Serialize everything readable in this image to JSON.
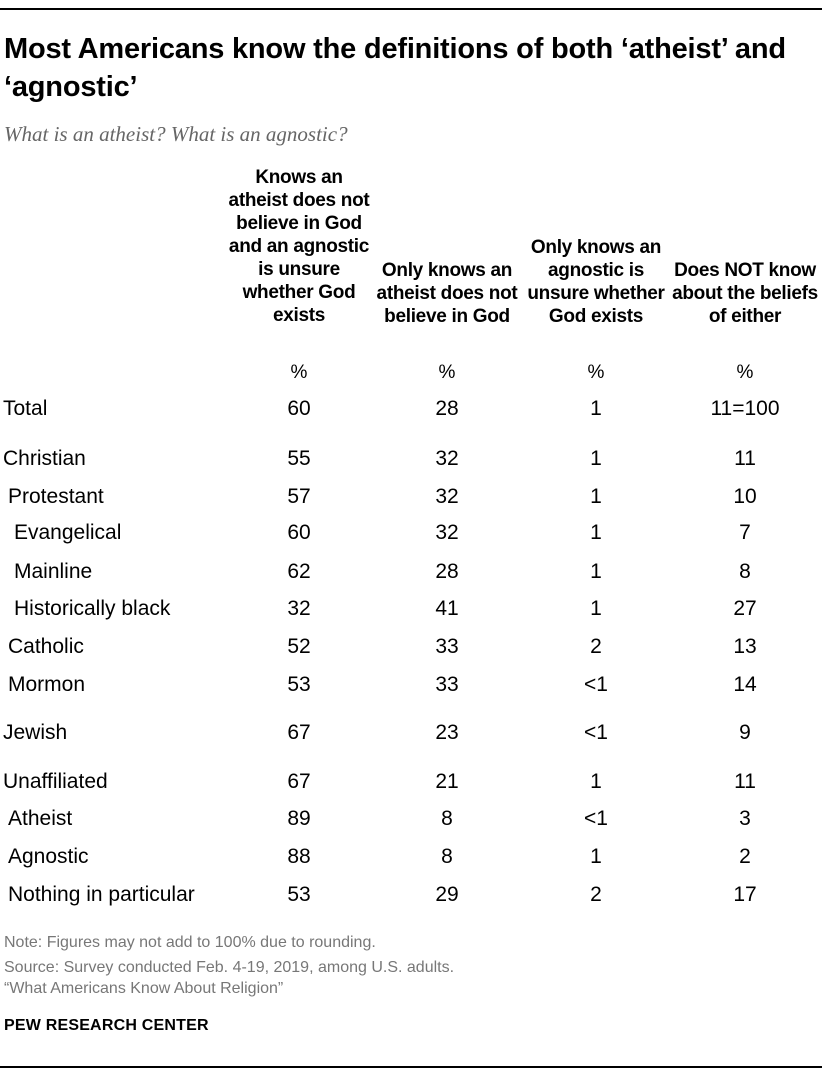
{
  "title": "Most Americans know the definitions of both ‘atheist’ and ‘agnostic’",
  "subtitle": "What is an atheist? What is an agnostic?",
  "columns": [
    "Knows an atheist does not believe in God and an agnostic is unsure whether God exists",
    "Only knows an atheist does not believe in God",
    "Only knows an agnostic is unsure whether God exists",
    "Does NOT know about the beliefs of either"
  ],
  "unit_row": [
    "%",
    "%",
    "%",
    "%"
  ],
  "rows": [
    {
      "label": "Total",
      "indent": 0,
      "values": [
        "60",
        "28",
        "1",
        "11=100"
      ]
    },
    {
      "label": "Christian",
      "indent": 0,
      "values": [
        "55",
        "32",
        "1",
        "11"
      ]
    },
    {
      "label": "Protestant",
      "indent": 1,
      "values": [
        "57",
        "32",
        "1",
        "10"
      ]
    },
    {
      "label": "Evangelical",
      "indent": 2,
      "values": [
        "60",
        "32",
        "1",
        "7"
      ]
    },
    {
      "label": "Mainline",
      "indent": 2,
      "values": [
        "62",
        "28",
        "1",
        "8"
      ]
    },
    {
      "label": "Historically black",
      "indent": 2,
      "values": [
        "32",
        "41",
        "1",
        "27"
      ]
    },
    {
      "label": "Catholic",
      "indent": 1,
      "values": [
        "52",
        "33",
        "2",
        "13"
      ]
    },
    {
      "label": "Mormon",
      "indent": 1,
      "values": [
        "53",
        "33",
        "<1",
        "14"
      ]
    },
    {
      "label": "Jewish",
      "indent": 0,
      "values": [
        "67",
        "23",
        "<1",
        "9"
      ]
    },
    {
      "label": "Unaffiliated",
      "indent": 0,
      "values": [
        "67",
        "21",
        "1",
        "11"
      ]
    },
    {
      "label": "Atheist",
      "indent": 1,
      "values": [
        "89",
        "8",
        "<1",
        "3"
      ]
    },
    {
      "label": "Agnostic",
      "indent": 1,
      "values": [
        "88",
        "8",
        "1",
        "2"
      ]
    },
    {
      "label": "Nothing in particular",
      "indent": 1,
      "values": [
        "53",
        "29",
        "2",
        "17"
      ]
    }
  ],
  "notes": [
    "Note: Figures may not add to 100% due to rounding.",
    "Source: Survey conducted Feb. 4-19, 2019, among U.S. adults.",
    "“What Americans Know About Religion”"
  ],
  "brand": "PEW RESEARCH CENTER",
  "chart_data": {
    "type": "table",
    "title": "Most Americans know the definitions of both ‘atheist’ and ‘agnostic’",
    "subtitle": "What is an atheist? What is an agnostic?",
    "columns": [
      "Knows an atheist does not believe in God and an agnostic is unsure whether God exists",
      "Only knows an atheist does not believe in God",
      "Only knows an agnostic is unsure whether God exists",
      "Does NOT know about the beliefs of either"
    ],
    "unit": "%",
    "rows": [
      {
        "label": "Total",
        "values": [
          "60",
          "28",
          "1",
          "11=100"
        ]
      },
      {
        "label": "Christian",
        "values": [
          "55",
          "32",
          "1",
          "11"
        ]
      },
      {
        "label": "Protestant",
        "values": [
          "57",
          "32",
          "1",
          "10"
        ]
      },
      {
        "label": "Evangelical",
        "values": [
          "60",
          "32",
          "1",
          "7"
        ]
      },
      {
        "label": "Mainline",
        "values": [
          "62",
          "28",
          "1",
          "8"
        ]
      },
      {
        "label": "Historically black",
        "values": [
          "32",
          "41",
          "1",
          "27"
        ]
      },
      {
        "label": "Catholic",
        "values": [
          "52",
          "33",
          "2",
          "13"
        ]
      },
      {
        "label": "Mormon",
        "values": [
          "53",
          "33",
          "<1",
          "14"
        ]
      },
      {
        "label": "Jewish",
        "values": [
          "67",
          "23",
          "<1",
          "9"
        ]
      },
      {
        "label": "Unaffiliated",
        "values": [
          "67",
          "21",
          "1",
          "11"
        ]
      },
      {
        "label": "Atheist",
        "values": [
          "89",
          "8",
          "<1",
          "3"
        ]
      },
      {
        "label": "Agnostic",
        "values": [
          "88",
          "8",
          "1",
          "2"
        ]
      },
      {
        "label": "Nothing in particular",
        "values": [
          "53",
          "29",
          "2",
          "17"
        ]
      }
    ]
  }
}
